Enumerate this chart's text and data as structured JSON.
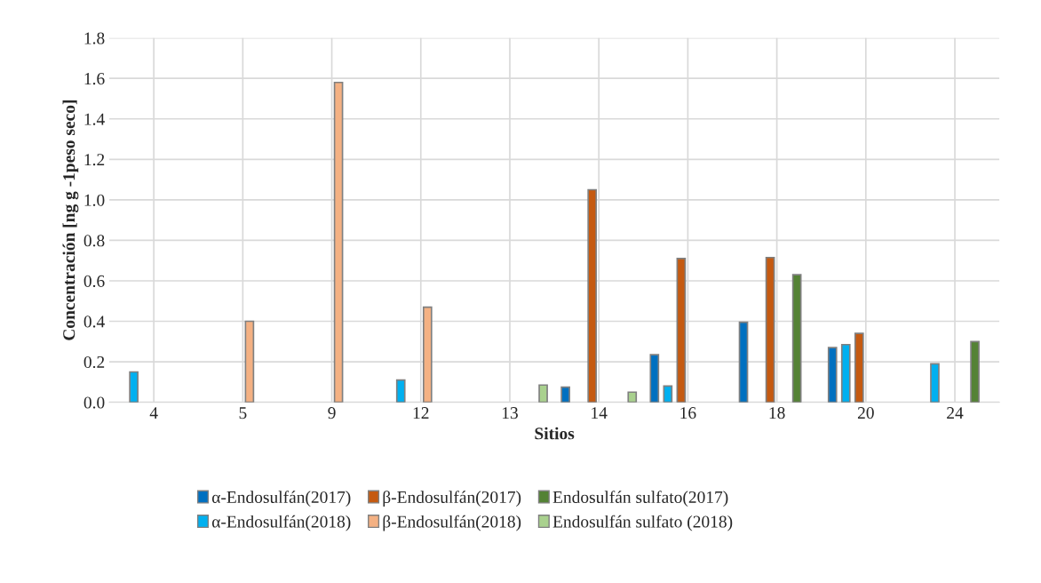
{
  "chart_data": {
    "type": "bar",
    "xlabel": "Sitios",
    "ylabel": "Concentración [ng g -1peso seco]",
    "categories": [
      "4",
      "5",
      "9",
      "12",
      "13",
      "14",
      "16",
      "18",
      "20",
      "24"
    ],
    "series": [
      {
        "name": "α-Endosulfán(2017)",
        "color": "#0070c0",
        "values": [
          null,
          null,
          null,
          null,
          null,
          0.075,
          0.235,
          0.395,
          0.27,
          null
        ]
      },
      {
        "name": "α-Endosulfán(2018)",
        "color": "#00b0f0",
        "values": [
          0.15,
          null,
          null,
          0.11,
          null,
          null,
          0.08,
          null,
          0.285,
          0.19
        ]
      },
      {
        "name": "β-Endosulfán(2017)",
        "color": "#c55a11",
        "values": [
          null,
          null,
          null,
          null,
          null,
          1.05,
          0.71,
          0.715,
          0.34,
          null
        ]
      },
      {
        "name": "β-Endosulfán(2018)",
        "color": "#f4b183",
        "values": [
          null,
          0.4,
          1.58,
          0.47,
          null,
          null,
          null,
          null,
          null,
          null
        ]
      },
      {
        "name": "Endosulfán sulfato(2017)",
        "color": "#548235",
        "values": [
          null,
          null,
          null,
          null,
          null,
          null,
          null,
          0.63,
          null,
          0.3
        ]
      },
      {
        "name": "Endosulfán sulfato (2018)",
        "color": "#a9d18e",
        "values": [
          null,
          null,
          null,
          null,
          0.085,
          0.05,
          null,
          null,
          null,
          null
        ]
      }
    ],
    "ylim": [
      0,
      1.8
    ],
    "yticks": [
      {
        "value": 0,
        "label": "0.0"
      },
      {
        "value": 0.2,
        "label": "0.2"
      },
      {
        "value": 0.4,
        "label": "0.4"
      },
      {
        "value": 0.6,
        "label": "0.6"
      },
      {
        "value": 0.8,
        "label": "0.8"
      },
      {
        "value": 1.0,
        "label": "1.0"
      },
      {
        "value": 1.2,
        "label": "1.2"
      },
      {
        "value": 1.4,
        "label": "1.4"
      },
      {
        "value": 1.6,
        "label": "1.6"
      },
      {
        "value": 1.8,
        "label": "1.8"
      }
    ],
    "grid": true,
    "legend": "bottom"
  }
}
